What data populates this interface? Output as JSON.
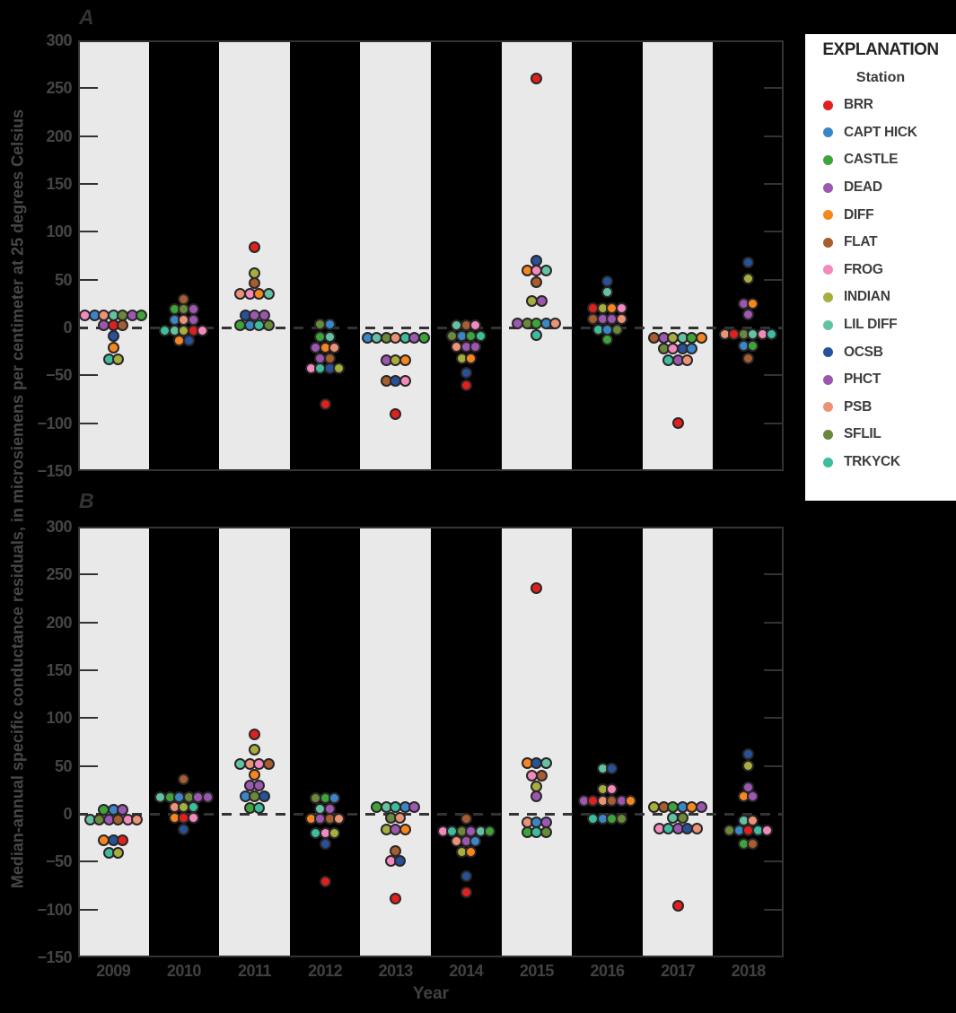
{
  "legend": {
    "title": "EXPLANATION",
    "subtitle": "Station"
  },
  "chart_data": {
    "type": "scatter",
    "subtype": "beeswarm-dot-plot",
    "xlabel": "Year",
    "ylabel": "Median-annual specific conductance residuals, in microsiemens per centimeter at 25 degrees Celsius",
    "ylim": [
      -150,
      300
    ],
    "yticks": [
      300,
      250,
      200,
      150,
      100,
      50,
      0,
      -50,
      -100,
      -150
    ],
    "zero_dashed_line": true,
    "grid": false,
    "band_color": "#e9e9e9",
    "background_color": "#000000",
    "dot_outline_color": "#2a2627",
    "legend_position": "right",
    "years": [
      "2009",
      "2010",
      "2011",
      "2012",
      "2013",
      "2014",
      "2015",
      "2016",
      "2017",
      "2018"
    ],
    "stations": [
      {
        "name": "BRR",
        "color": "#e0201e"
      },
      {
        "name": "CAPT HICK",
        "color": "#3a86c7"
      },
      {
        "name": "CASTLE",
        "color": "#3da43a"
      },
      {
        "name": "DEAD",
        "color": "#9c58b2"
      },
      {
        "name": "DIFF",
        "color": "#f6861f"
      },
      {
        "name": "FLAT",
        "color": "#a65d2f"
      },
      {
        "name": "FROG",
        "color": "#f28abd"
      },
      {
        "name": "INDIAN",
        "color": "#a6ae3e"
      },
      {
        "name": "LIL DIFF",
        "color": "#63c2a1"
      },
      {
        "name": "OCSB",
        "color": "#27529a"
      },
      {
        "name": "PHCT",
        "color": "#9a57ad"
      },
      {
        "name": "PSB",
        "color": "#eb9376"
      },
      {
        "name": "SFLIL",
        "color": "#69893b"
      },
      {
        "name": "TRKYCK",
        "color": "#3dbd9b"
      }
    ],
    "panels": [
      {
        "label": "A",
        "values": [
          [
            {
              "v": 13,
              "s": [
                "FROG",
                "CAPT HICK",
                "PSB",
                "LIL DIFF",
                "SFLIL",
                "DEAD",
                "CASTLE"
              ]
            },
            {
              "v": 2,
              "s": [
                "PHCT",
                "BRR",
                "FLAT"
              ]
            },
            {
              "v": -9,
              "s": [
                "OCSB"
              ]
            },
            {
              "v": -21,
              "s": [
                "DIFF"
              ]
            },
            {
              "v": -33,
              "s": [
                "TRKYCK",
                "INDIAN"
              ]
            }
          ],
          [
            {
              "v": 30,
              "s": [
                "FLAT"
              ]
            },
            {
              "v": 19,
              "s": [
                "CASTLE",
                "SFLIL",
                "DEAD"
              ]
            },
            {
              "v": 8,
              "s": [
                "CAPT HICK",
                "PSB",
                "PHCT"
              ]
            },
            {
              "v": -3,
              "s": [
                "TRKYCK",
                "LIL DIFF",
                "INDIAN",
                "BRR",
                "FROG"
              ]
            },
            {
              "v": -14,
              "s": [
                "DIFF",
                "OCSB"
              ]
            }
          ],
          [
            {
              "v": 84,
              "s": [
                "BRR"
              ]
            },
            {
              "v": 57,
              "s": [
                "INDIAN"
              ]
            },
            {
              "v": 46,
              "s": [
                "FLAT"
              ]
            },
            {
              "v": 35,
              "s": [
                "PSB",
                "FROG",
                "DIFF",
                "LIL DIFF"
              ]
            },
            {
              "v": 13,
              "s": [
                "OCSB",
                "DEAD",
                "PHCT"
              ]
            },
            {
              "v": 2,
              "s": [
                "CASTLE",
                "CAPT HICK",
                "TRKYCK",
                "SFLIL"
              ]
            }
          ],
          [
            {
              "v": 3,
              "s": [
                "SFLIL",
                "CAPT HICK"
              ]
            },
            {
              "v": -10,
              "s": [
                "CASTLE",
                "LIL DIFF"
              ]
            },
            {
              "v": -21,
              "s": [
                "DEAD",
                "DIFF",
                "PSB"
              ]
            },
            {
              "v": -32,
              "s": [
                "PHCT",
                "FLAT"
              ]
            },
            {
              "v": -43,
              "s": [
                "FROG",
                "TRKYCK",
                "OCSB",
                "INDIAN"
              ]
            },
            {
              "v": -80,
              "s": [
                "BRR"
              ]
            }
          ],
          [
            {
              "v": -11,
              "s": [
                "CAPT HICK",
                "LIL DIFF",
                "SFLIL",
                "PSB",
                "TRKYCK",
                "DEAD",
                "CASTLE"
              ]
            },
            {
              "v": -34,
              "s": [
                "PHCT",
                "INDIAN",
                "DIFF"
              ]
            },
            {
              "v": -56,
              "s": [
                "FLAT",
                "OCSB",
                "FROG"
              ]
            },
            {
              "v": -90,
              "s": [
                "BRR"
              ]
            }
          ],
          [
            {
              "v": 2,
              "s": [
                "LIL DIFF",
                "FLAT",
                "FROG"
              ]
            },
            {
              "v": -9,
              "s": [
                "SFLIL",
                "CAPT HICK",
                "CASTLE",
                "TRKYCK"
              ]
            },
            {
              "v": -20,
              "s": [
                "PSB",
                "DEAD",
                "PHCT"
              ]
            },
            {
              "v": -32,
              "s": [
                "INDIAN",
                "DIFF"
              ]
            },
            {
              "v": -47,
              "s": [
                "OCSB"
              ]
            },
            {
              "v": -60,
              "s": [
                "BRR"
              ]
            }
          ],
          [
            {
              "v": 260,
              "s": [
                "BRR"
              ]
            },
            {
              "v": 70,
              "s": [
                "OCSB"
              ]
            },
            {
              "v": 60,
              "s": [
                "DIFF",
                "FROG",
                "LIL DIFF"
              ]
            },
            {
              "v": 47,
              "s": [
                "FLAT"
              ]
            },
            {
              "v": 28,
              "s": [
                "INDIAN",
                "PHCT"
              ]
            },
            {
              "v": 4,
              "s": [
                "DEAD",
                "SFLIL",
                "CASTLE",
                "CAPT HICK",
                "PSB"
              ]
            },
            {
              "v": -8,
              "s": [
                "TRKYCK"
              ]
            }
          ],
          [
            {
              "v": 48,
              "s": [
                "OCSB"
              ]
            },
            {
              "v": 37,
              "s": [
                "LIL DIFF"
              ]
            },
            {
              "v": 20,
              "s": [
                "BRR",
                "INDIAN",
                "DIFF",
                "FROG"
              ]
            },
            {
              "v": 9,
              "s": [
                "FLAT",
                "DEAD",
                "PHCT",
                "PSB"
              ]
            },
            {
              "v": -2,
              "s": [
                "TRKYCK",
                "CAPT HICK",
                "SFLIL"
              ]
            },
            {
              "v": -13,
              "s": [
                "CASTLE"
              ]
            }
          ],
          [
            {
              "v": -11,
              "s": [
                "FLAT",
                "DEAD",
                "INDIAN",
                "LIL DIFF",
                "CASTLE",
                "DIFF"
              ]
            },
            {
              "v": -22,
              "s": [
                "SFLIL",
                "FROG",
                "OCSB",
                "CAPT HICK"
              ]
            },
            {
              "v": -34,
              "s": [
                "TRKYCK",
                "PHCT",
                "PSB"
              ]
            },
            {
              "v": -100,
              "s": [
                "BRR"
              ]
            }
          ],
          [
            {
              "v": 68,
              "s": [
                "OCSB"
              ]
            },
            {
              "v": 51,
              "s": [
                "INDIAN"
              ]
            },
            {
              "v": 25,
              "s": [
                "PHCT",
                "DIFF"
              ]
            },
            {
              "v": 14,
              "s": [
                "DEAD"
              ]
            },
            {
              "v": -7,
              "s": [
                "PSB",
                "BRR",
                "SFLIL",
                "LIL DIFF",
                "FROG",
                "TRKYCK"
              ]
            },
            {
              "v": -19,
              "s": [
                "CAPT HICK",
                "CASTLE"
              ]
            },
            {
              "v": -32,
              "s": [
                "FLAT"
              ]
            }
          ]
        ]
      },
      {
        "label": "B",
        "values": [
          [
            {
              "v": 4,
              "s": [
                "CASTLE",
                "CAPT HICK",
                "PHCT"
              ]
            },
            {
              "v": -6,
              "s": [
                "LIL DIFF",
                "SFLIL",
                "DEAD",
                "FLAT",
                "FROG",
                "PSB"
              ]
            },
            {
              "v": -28,
              "s": [
                "DIFF",
                "OCSB",
                "BRR"
              ]
            },
            {
              "v": -41,
              "s": [
                "TRKYCK",
                "INDIAN"
              ]
            }
          ],
          [
            {
              "v": 36,
              "s": [
                "FLAT"
              ]
            },
            {
              "v": 17,
              "s": [
                "LIL DIFF",
                "CASTLE",
                "CAPT HICK",
                "SFLIL",
                "DEAD",
                "PHCT"
              ]
            },
            {
              "v": 7,
              "s": [
                "PSB",
                "INDIAN",
                "TRKYCK"
              ]
            },
            {
              "v": -4,
              "s": [
                "DIFF",
                "BRR",
                "FROG"
              ]
            },
            {
              "v": -16,
              "s": [
                "OCSB"
              ]
            }
          ],
          [
            {
              "v": 83,
              "s": [
                "BRR"
              ]
            },
            {
              "v": 67,
              "s": [
                "INDIAN"
              ]
            },
            {
              "v": 52,
              "s": [
                "LIL DIFF",
                "PSB",
                "FROG",
                "FLAT"
              ]
            },
            {
              "v": 41,
              "s": [
                "DIFF"
              ]
            },
            {
              "v": 30,
              "s": [
                "DEAD",
                "PHCT"
              ]
            },
            {
              "v": 18,
              "s": [
                "CAPT HICK",
                "SFLIL",
                "OCSB"
              ]
            },
            {
              "v": 6,
              "s": [
                "CASTLE",
                "TRKYCK"
              ]
            }
          ],
          [
            {
              "v": 16,
              "s": [
                "SFLIL",
                "CASTLE",
                "CAPT HICK"
              ]
            },
            {
              "v": 5,
              "s": [
                "LIL DIFF",
                "DEAD"
              ]
            },
            {
              "v": -5,
              "s": [
                "DIFF",
                "PHCT",
                "FLAT",
                "PSB"
              ]
            },
            {
              "v": -20,
              "s": [
                "TRKYCK",
                "FROG",
                "INDIAN"
              ]
            },
            {
              "v": -31,
              "s": [
                "OCSB"
              ]
            },
            {
              "v": -71,
              "s": [
                "BRR"
              ]
            }
          ],
          [
            {
              "v": 7,
              "s": [
                "CASTLE",
                "LIL DIFF",
                "TRKYCK",
                "CAPT HICK",
                "DEAD"
              ]
            },
            {
              "v": -4,
              "s": [
                "SFLIL",
                "PSB"
              ]
            },
            {
              "v": -16,
              "s": [
                "INDIAN",
                "PHCT",
                "DIFF"
              ]
            },
            {
              "v": -39,
              "s": [
                "FLAT"
              ]
            },
            {
              "v": -49,
              "s": [
                "FROG",
                "OCSB"
              ]
            },
            {
              "v": -89,
              "s": [
                "BRR"
              ]
            }
          ],
          [
            {
              "v": -5,
              "s": [
                "FLAT"
              ]
            },
            {
              "v": -18,
              "s": [
                "FROG",
                "TRKYCK",
                "SFLIL",
                "DEAD",
                "LIL DIFF",
                "CASTLE"
              ]
            },
            {
              "v": -29,
              "s": [
                "PSB",
                "PHCT",
                "CAPT HICK"
              ]
            },
            {
              "v": -40,
              "s": [
                "INDIAN",
                "DIFF"
              ]
            },
            {
              "v": -65,
              "s": [
                "OCSB"
              ]
            },
            {
              "v": -82,
              "s": [
                "BRR"
              ]
            }
          ],
          [
            {
              "v": 236,
              "s": [
                "BRR"
              ]
            },
            {
              "v": 53,
              "s": [
                "DIFF",
                "OCSB",
                "LIL DIFF"
              ]
            },
            {
              "v": 40,
              "s": [
                "FROG",
                "FLAT"
              ]
            },
            {
              "v": 29,
              "s": [
                "INDIAN"
              ]
            },
            {
              "v": 18,
              "s": [
                "PHCT"
              ]
            },
            {
              "v": -9,
              "s": [
                "PSB",
                "CAPT HICK",
                "DEAD"
              ]
            },
            {
              "v": -19,
              "s": [
                "CASTLE",
                "TRKYCK",
                "SFLIL"
              ]
            }
          ],
          [
            {
              "v": 47,
              "s": [
                "LIL DIFF",
                "OCSB"
              ]
            },
            {
              "v": 26,
              "s": [
                "INDIAN",
                "FROG"
              ]
            },
            {
              "v": 14,
              "s": [
                "DEAD",
                "BRR",
                "PSB",
                "FLAT",
                "PHCT",
                "DIFF"
              ]
            },
            {
              "v": -5,
              "s": [
                "TRKYCK",
                "CAPT HICK",
                "CASTLE",
                "SFLIL"
              ]
            }
          ],
          [
            {
              "v": 7,
              "s": [
                "INDIAN",
                "FLAT",
                "CASTLE",
                "CAPT HICK",
                "DIFF",
                "PHCT"
              ]
            },
            {
              "v": -4,
              "s": [
                "LIL DIFF",
                "SFLIL"
              ]
            },
            {
              "v": -15,
              "s": [
                "FROG",
                "TRKYCK",
                "DEAD",
                "OCSB",
                "PSB"
              ]
            },
            {
              "v": -96,
              "s": [
                "BRR"
              ]
            }
          ],
          [
            {
              "v": 62,
              "s": [
                "OCSB"
              ]
            },
            {
              "v": 50,
              "s": [
                "INDIAN"
              ]
            },
            {
              "v": 28,
              "s": [
                "PHCT"
              ]
            },
            {
              "v": 18,
              "s": [
                "DIFF",
                "DEAD"
              ]
            },
            {
              "v": -7,
              "s": [
                "LIL DIFF",
                "PSB"
              ]
            },
            {
              "v": -17,
              "s": [
                "SFLIL",
                "CAPT HICK",
                "BRR",
                "TRKYCK",
                "FROG"
              ]
            },
            {
              "v": -31,
              "s": [
                "CASTLE",
                "FLAT"
              ]
            }
          ]
        ]
      }
    ]
  }
}
